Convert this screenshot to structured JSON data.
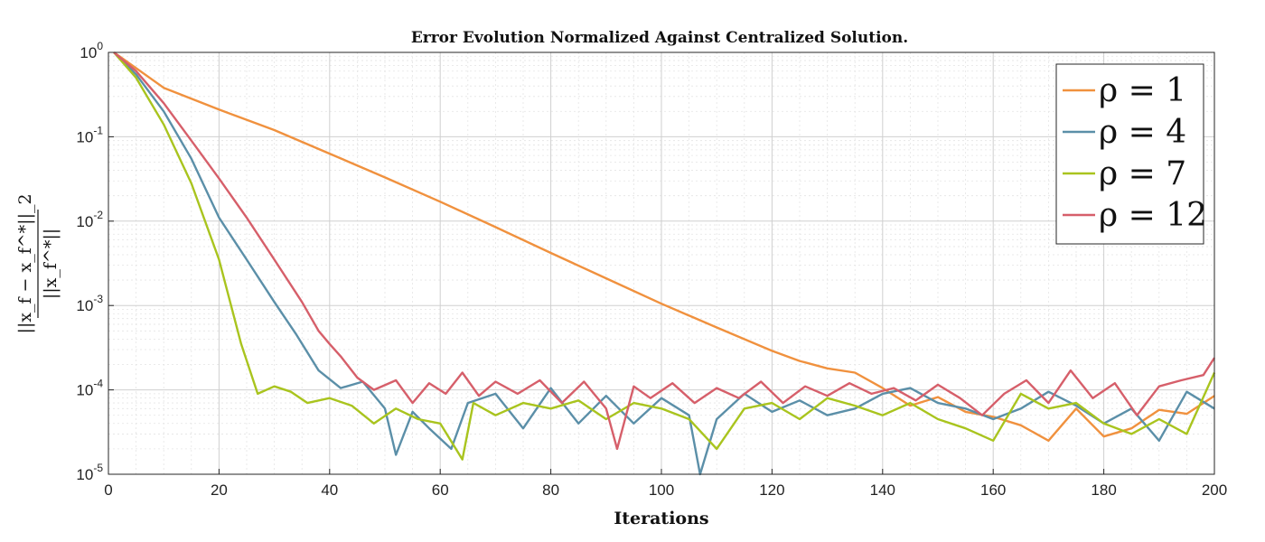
{
  "chart_data": {
    "type": "line",
    "title": "Error Evolution Normalized Against Centralized Solution.",
    "xlabel": "Iterations",
    "ylabel": {
      "numerator": "||x_f − x_f^*||_2",
      "denominator": "||x_f^*||"
    },
    "xlim": [
      0,
      200
    ],
    "ylim": [
      1e-05,
      1
    ],
    "yscale": "log",
    "grid": true,
    "minor_grid": true,
    "legend_position": "top-right",
    "xticks": [
      "0",
      "20",
      "40",
      "60",
      "80",
      "100",
      "120",
      "140",
      "160",
      "180",
      "200"
    ],
    "yticks": [
      {
        "base": "10",
        "exp": "0"
      },
      {
        "base": "10",
        "exp": "-1"
      },
      {
        "base": "10",
        "exp": "-2"
      },
      {
        "base": "10",
        "exp": "-3"
      },
      {
        "base": "10",
        "exp": "-4"
      },
      {
        "base": "10",
        "exp": "-5"
      }
    ],
    "series": [
      {
        "name": "ρ = 1",
        "color": "#F0913E",
        "x": [
          1,
          10,
          20,
          30,
          40,
          50,
          60,
          70,
          80,
          90,
          100,
          110,
          120,
          125,
          130,
          135,
          140,
          145,
          150,
          155,
          160,
          165,
          170,
          175,
          180,
          185,
          190,
          195,
          200
        ],
        "y": [
          1,
          0.38,
          0.21,
          0.12,
          0.063,
          0.033,
          0.017,
          0.0085,
          0.0042,
          0.0021,
          0.00105,
          0.00055,
          0.00029,
          0.00022,
          0.00018,
          0.00016,
          0.000105,
          6.5e-05,
          8.2e-05,
          5.5e-05,
          4.8e-05,
          3.8e-05,
          2.5e-05,
          6e-05,
          2.8e-05,
          3.5e-05,
          5.8e-05,
          5.2e-05,
          8.5e-05
        ]
      },
      {
        "name": "ρ = 4",
        "color": "#5B8FA8",
        "x": [
          1,
          5,
          10,
          15,
          20,
          25,
          30,
          34,
          38,
          42,
          46,
          50,
          52,
          55,
          58,
          62,
          65,
          70,
          75,
          80,
          85,
          90,
          95,
          100,
          105,
          107,
          110,
          115,
          120,
          125,
          130,
          135,
          140,
          145,
          150,
          155,
          160,
          165,
          170,
          175,
          180,
          185,
          190,
          195,
          200
        ],
        "y": [
          1,
          0.55,
          0.2,
          0.055,
          0.011,
          0.0035,
          0.0011,
          0.00045,
          0.00017,
          0.000105,
          0.000125,
          6e-05,
          1.7e-05,
          5.5e-05,
          3.5e-05,
          2e-05,
          7e-05,
          9e-05,
          3.5e-05,
          0.000105,
          4e-05,
          8.5e-05,
          4e-05,
          8e-05,
          5e-05,
          1e-05,
          4.5e-05,
          9e-05,
          5.5e-05,
          7.5e-05,
          5e-05,
          6e-05,
          9e-05,
          0.000105,
          7e-05,
          6e-05,
          4.5e-05,
          6e-05,
          9.5e-05,
          6.5e-05,
          4e-05,
          6e-05,
          2.5e-05,
          9.5e-05,
          6e-05
        ]
      },
      {
        "name": "ρ = 7",
        "color": "#A9C41E",
        "x": [
          1,
          5,
          10,
          15,
          20,
          24,
          27,
          30,
          33,
          36,
          40,
          44,
          48,
          52,
          56,
          60,
          64,
          66,
          70,
          75,
          80,
          85,
          90,
          95,
          100,
          105,
          110,
          115,
          120,
          125,
          130,
          135,
          140,
          145,
          150,
          155,
          160,
          165,
          170,
          175,
          180,
          185,
          190,
          195,
          200
        ],
        "y": [
          1,
          0.5,
          0.14,
          0.028,
          0.0035,
          0.00035,
          9e-05,
          0.00011,
          9.5e-05,
          7e-05,
          8e-05,
          6.5e-05,
          4e-05,
          6e-05,
          4.5e-05,
          4e-05,
          1.5e-05,
          7e-05,
          5e-05,
          7e-05,
          6e-05,
          7.5e-05,
          4.5e-05,
          7e-05,
          6e-05,
          4.5e-05,
          2e-05,
          6e-05,
          7e-05,
          4.5e-05,
          8e-05,
          6.5e-05,
          5e-05,
          7e-05,
          4.5e-05,
          3.5e-05,
          2.5e-05,
          9e-05,
          6e-05,
          7e-05,
          4e-05,
          3e-05,
          4.5e-05,
          3e-05,
          0.00016
        ]
      },
      {
        "name": "ρ = 12",
        "color": "#D65F6A",
        "x": [
          1,
          5,
          10,
          15,
          20,
          25,
          30,
          35,
          38,
          40,
          42,
          45,
          48,
          52,
          55,
          58,
          61,
          64,
          67,
          70,
          74,
          78,
          82,
          86,
          90,
          92,
          95,
          98,
          102,
          106,
          110,
          114,
          118,
          122,
          126,
          130,
          134,
          138,
          142,
          146,
          150,
          154,
          158,
          162,
          166,
          170,
          174,
          178,
          182,
          186,
          190,
          194,
          198,
          200
        ],
        "y": [
          1,
          0.6,
          0.25,
          0.09,
          0.032,
          0.011,
          0.0035,
          0.0011,
          0.0005,
          0.00035,
          0.00025,
          0.00014,
          0.0001,
          0.00013,
          7e-05,
          0.00012,
          9e-05,
          0.00016,
          8.5e-05,
          0.000125,
          9e-05,
          0.00013,
          7e-05,
          0.000125,
          6e-05,
          2e-05,
          0.00011,
          8e-05,
          0.00012,
          7e-05,
          0.000105,
          8e-05,
          0.000125,
          7e-05,
          0.00011,
          8.5e-05,
          0.00012,
          9e-05,
          0.000105,
          7.5e-05,
          0.000115,
          8e-05,
          5e-05,
          9e-05,
          0.00013,
          7e-05,
          0.00017,
          8e-05,
          0.00012,
          5e-05,
          0.00011,
          0.00013,
          0.00015,
          0.00024
        ]
      }
    ]
  }
}
